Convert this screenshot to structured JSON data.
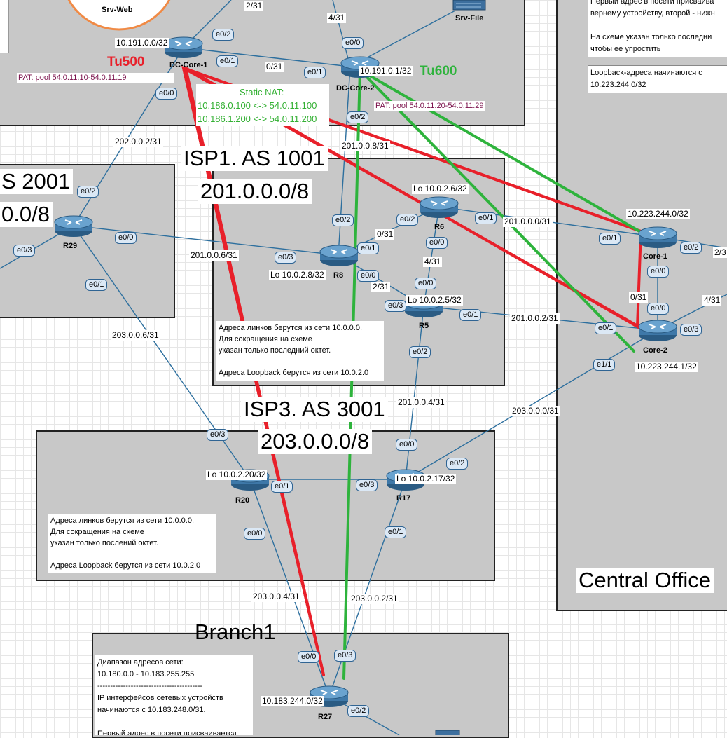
{
  "zones": {
    "isp1": {
      "title": "ISP1. AS 1001",
      "net": "201.0.0.0/8",
      "note": "Адреса линков берутся из сети 10.0.0.0.\nДля сокращения на схеме\nуказан только последний октет.\n\nАдреса Loopback берутся из сети 10.0.2.0"
    },
    "isp2": {
      "title": "S 2001",
      "net": "0.0/8"
    },
    "isp3": {
      "title": "ISP3. AS 3001",
      "net": "203.0.0.0/8",
      "note": "Адреса линков берутся из сети 10.0.0.0.\nДля сокращения на схеме\nуказан только послений октет.\n\nАдреса Loopback берутся из сети 10.0.2.0"
    },
    "central": {
      "title": "Central Office",
      "note_top": "Первый адрес в посети присваива\nвернему устройству, второй - нижн\n\nНа схеме указан только последни\nчтобы ее упростить",
      "note_lb": "Loopback-адреса начинаются с\n10.223.244.0/32"
    },
    "branch": {
      "title": "Branch1",
      "note": "Диапазон адресов сети:\n10.180.0.0 - 10.183.255.255\n-----------------------------------------\nIP интерфейсов сетевых устройств\nначинаются с 10.183.248.0/31.\n\nПервый адрес в посети присваивается"
    },
    "dc": {
      "pat1": "PAT: pool 54.0.11.10-54.0.11.19",
      "pat2": "PAT: pool 54.0.11.20-54.0.11.29",
      "nat_title": "Static NAT:",
      "nat1": "10.186.0.100 <-> 54.0.11.100",
      "nat2": "10.186.1.200 <-> 54.0.11.200"
    }
  },
  "tunnels": {
    "tu500": "Tu500",
    "tu600": "Tu600"
  },
  "servers": {
    "web": "Srv-Web",
    "file": "Srv-File"
  },
  "routers": {
    "dc1": {
      "name": "DC-Core-1",
      "lo": "10.191.0.0/32"
    },
    "dc2": {
      "name": "DC-Core-2",
      "lo": "10.191.0.1/32"
    },
    "r29": {
      "name": "R29"
    },
    "r8": {
      "name": "R8",
      "lo": "Lo 10.0.2.8/32"
    },
    "r6": {
      "name": "R6",
      "lo": "Lo 10.0.2.6/32"
    },
    "r5": {
      "name": "R5",
      "lo": "Lo 10.0.2.5/32"
    },
    "core1": {
      "name": "Core-1",
      "lo": "10.223.244.0/32"
    },
    "core2": {
      "name": "Core-2",
      "lo": "10.223.244.1/32"
    },
    "r20": {
      "name": "R20",
      "lo": "Lo 10.0.2.20/32"
    },
    "r17": {
      "name": "R17",
      "lo": "Lo 10.0.2.17/32"
    },
    "r27": {
      "name": "R27",
      "lo": "10.183.244.0/32"
    }
  },
  "links": {
    "l_2_31": "2/31",
    "l_4_31_top": "4/31",
    "l_0_31_dc": "0/31",
    "l_202": "202.0.0.2/31",
    "l_201_8": "201.0.0.8/31",
    "l_201_6": "201.0.0.6/31",
    "l_0_31_isp1": "0/31",
    "l_4_31_isp1": "4/31",
    "l_2_31_isp1": "2/31",
    "l_201_0": "201.0.0.0/31",
    "l_201_2": "201.0.0.2/31",
    "l_0_31_co": "0/31",
    "l_4_31_co": "4/31",
    "l_2_3_co": "2/3",
    "l_203_6": "203.0.0.6/31",
    "l_201_4": "201.0.0.4/31",
    "l_203_0": "203.0.0.0/31",
    "l_203_4": "203.0.0.4/31",
    "l_203_2": "203.0.0.2/31"
  },
  "ports": {
    "dc1_e02": "e0/2",
    "dc1_e01": "e0/1",
    "dc1_e00": "e0/0",
    "dc2_e00": "e0/0",
    "dc2_e01": "e0/1",
    "dc2_e02": "e0/2",
    "r29_e02": "e0/2",
    "r29_e03": "e0/3",
    "r29_e00": "e0/0",
    "r29_e01": "e0/1",
    "r8_e02": "e0/2",
    "r8_e03": "e0/3",
    "r8_e01": "e0/1",
    "r8_e00": "e0/0",
    "r6_e02": "e0/2",
    "r6_e01": "e0/1",
    "r6_e00": "e0/0",
    "r5_e00": "e0/0",
    "r5_e03": "e0/3",
    "r5_e01": "e0/1",
    "r5_e02": "e0/2",
    "c1_e01": "e0/1",
    "c1_e02": "e0/2",
    "c1_e00": "e0/0",
    "c2_e00": "e0/0",
    "c2_e01": "e0/1",
    "c2_e03": "e0/3",
    "c2_e11": "e1/1",
    "r20_e03": "e0/3",
    "r20_e01": "e0/1",
    "r20_e00": "e0/0",
    "r17_e00": "e0/0",
    "r17_e02": "e0/2",
    "r17_e03": "e0/3",
    "r17_e01": "e0/1",
    "r27_e00": "e0/0",
    "r27_e03": "e0/3",
    "r27_e02": "e0/2"
  },
  "colors": {
    "tunnel500": "#e8202a",
    "tunnel600": "#2eb33c",
    "link": "#2d6f9e",
    "pat": "#7a0f4a",
    "nat": "#33b033"
  }
}
